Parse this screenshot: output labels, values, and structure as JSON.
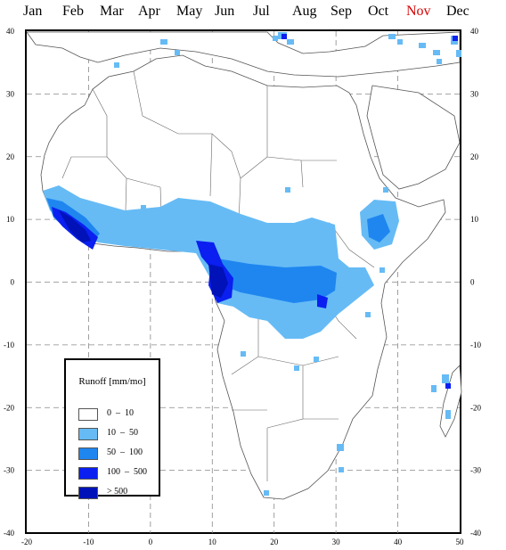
{
  "months": [
    "Jan",
    "Feb",
    "Mar",
    "Apr",
    "May",
    "Jun",
    "Jul",
    "Aug",
    "Sep",
    "Oct",
    "Nov",
    "Dec"
  ],
  "selected_month": "Nov",
  "selected_color": "#d40000",
  "axes": {
    "x_ticks": [
      "-20",
      "-10",
      "0",
      "10",
      "20",
      "30",
      "40",
      "50"
    ],
    "y_ticks": [
      "40",
      "30",
      "20",
      "10",
      "0",
      "-10",
      "-20",
      "-30",
      "-40"
    ],
    "lon_range": [
      -20,
      50
    ],
    "lat_range": [
      -40,
      40
    ],
    "gridlines": "dashed"
  },
  "legend": {
    "title": "Runoff [mm/mo]",
    "items": [
      {
        "label": "0  –  10",
        "color": "#ffffff"
      },
      {
        "label": "10  –  50",
        "color": "#66bbf5"
      },
      {
        "label": "50  –  100",
        "color": "#1f86f0"
      },
      {
        "label": "100  –  500",
        "color": "#0a1ff0"
      },
      {
        "label": "> 500",
        "color": "#0012b8"
      }
    ]
  },
  "map": {
    "land_fill": "#ffffff",
    "border_color": "#555555"
  }
}
